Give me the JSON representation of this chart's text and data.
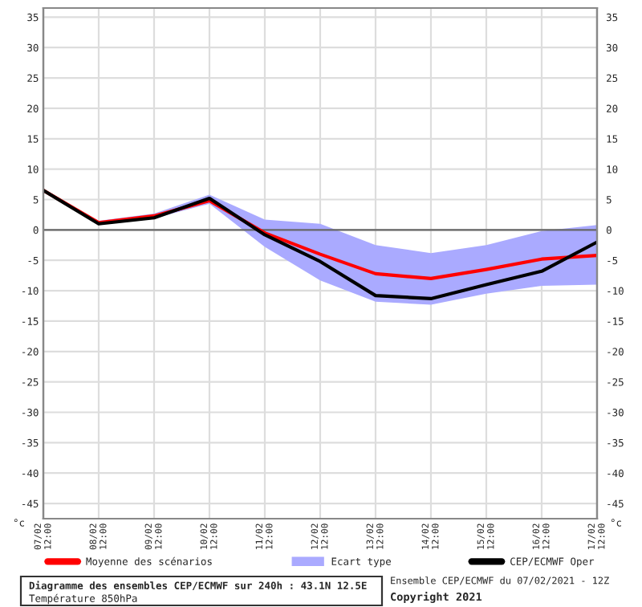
{
  "chart_data": {
    "type": "line",
    "title": "Diagramme des ensembles CEP/ECMWF sur 240h : 43.1N 12.5E",
    "subtitle": "Température 850hPa",
    "ylabel": "°c",
    "y2label": "°c",
    "annotations": [
      "Ensemble CEP/ECMWF du 07/02/2021 - 12Z",
      "Copyright 2021"
    ],
    "categories": [
      "07/02 12:00",
      "08/02 12:00",
      "09/02 12:00",
      "10/02 12:00",
      "11/02 12:00",
      "12/02 12:00",
      "13/02 12:00",
      "14/02 12:00",
      "15/02 12:00",
      "16/02 12:00",
      "17/02 12:00"
    ],
    "series": [
      {
        "name": "Moyenne des scénarios",
        "type": "line",
        "color": "#ff0000",
        "values": [
          6.5,
          1.2,
          2.3,
          4.8,
          -0.5,
          -4.0,
          -7.2,
          -8.0,
          -6.5,
          -4.8,
          -4.2
        ]
      },
      {
        "name": "Ecart type",
        "type": "line",
        "color": "#aaaaff",
        "values": [
          null,
          null,
          null,
          null,
          null,
          null,
          null,
          null,
          null,
          null,
          null
        ],
        "lower": [
          6.5,
          1.0,
          1.9,
          4.3,
          -2.8,
          -8.3,
          -11.8,
          -12.3,
          -10.5,
          -9.2,
          -9.0
        ],
        "upper": [
          6.5,
          1.5,
          2.7,
          5.8,
          1.7,
          1.0,
          -2.5,
          -3.8,
          -2.5,
          -0.2,
          0.8
        ]
      },
      {
        "name": "CEP/ECMWF Oper",
        "type": "line",
        "color": "#000000",
        "values": [
          6.5,
          1.0,
          2.0,
          5.2,
          -0.8,
          -5.2,
          -10.8,
          -11.3,
          -9.0,
          -6.8,
          -2.0
        ]
      }
    ],
    "ylim": [
      -47.5,
      36.5
    ],
    "yticks": [
      -45,
      -40,
      -35,
      -30,
      -25,
      -20,
      -15,
      -10,
      -5,
      0,
      5,
      10,
      15,
      20,
      25,
      30,
      35
    ],
    "y2lim": [
      -47.5,
      36.5
    ],
    "y2ticks": [
      -45,
      -40,
      -35,
      -30,
      -25,
      -20,
      -15,
      -10,
      -5,
      0,
      5,
      10,
      15,
      20,
      25,
      30,
      35
    ],
    "ref_lines": [
      {
        "axis": "y",
        "value": 0,
        "color": "#666666"
      }
    ],
    "grid": true,
    "legend": "bottom",
    "marker": "none",
    "line_style": "solid"
  }
}
